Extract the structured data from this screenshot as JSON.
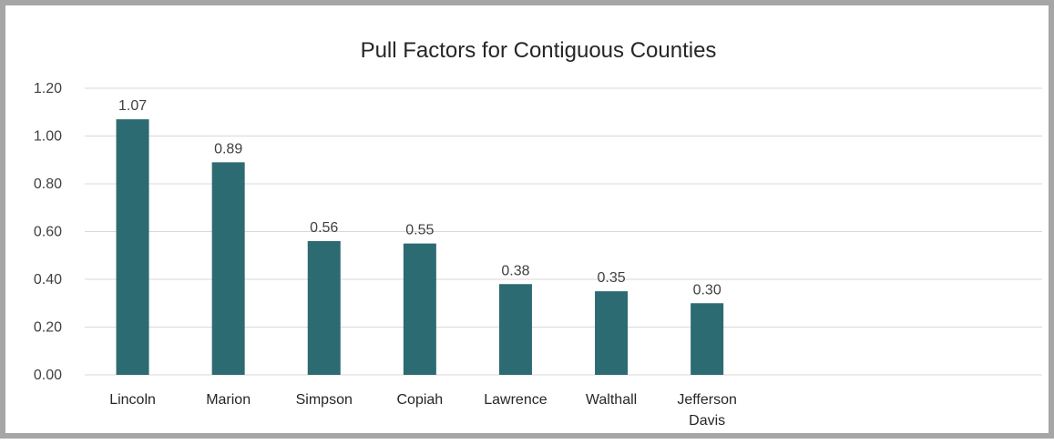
{
  "chart_data": {
    "type": "bar",
    "title": "Pull Factors for Contiguous Counties",
    "xlabel": "",
    "ylabel": "",
    "categories": [
      [
        "Lincoln"
      ],
      [
        "Marion"
      ],
      [
        "Simpson"
      ],
      [
        "Copiah"
      ],
      [
        "Lawrence"
      ],
      [
        "Walthall"
      ],
      [
        "Jefferson",
        "Davis"
      ]
    ],
    "values": [
      1.07,
      0.89,
      0.56,
      0.55,
      0.38,
      0.35,
      0.3
    ],
    "data_labels": [
      "1.07",
      "0.89",
      "0.56",
      "0.55",
      "0.38",
      "0.35",
      "0.30"
    ],
    "ylim": [
      0,
      1.2
    ],
    "yticks": [
      "0.00",
      "0.20",
      "0.40",
      "0.60",
      "0.80",
      "1.00",
      "1.20"
    ],
    "grid": true,
    "legend": "none",
    "colors": {
      "bar": "#2c6b71",
      "grid": "#d9d9d9",
      "frame": "#a6a6a6"
    }
  }
}
